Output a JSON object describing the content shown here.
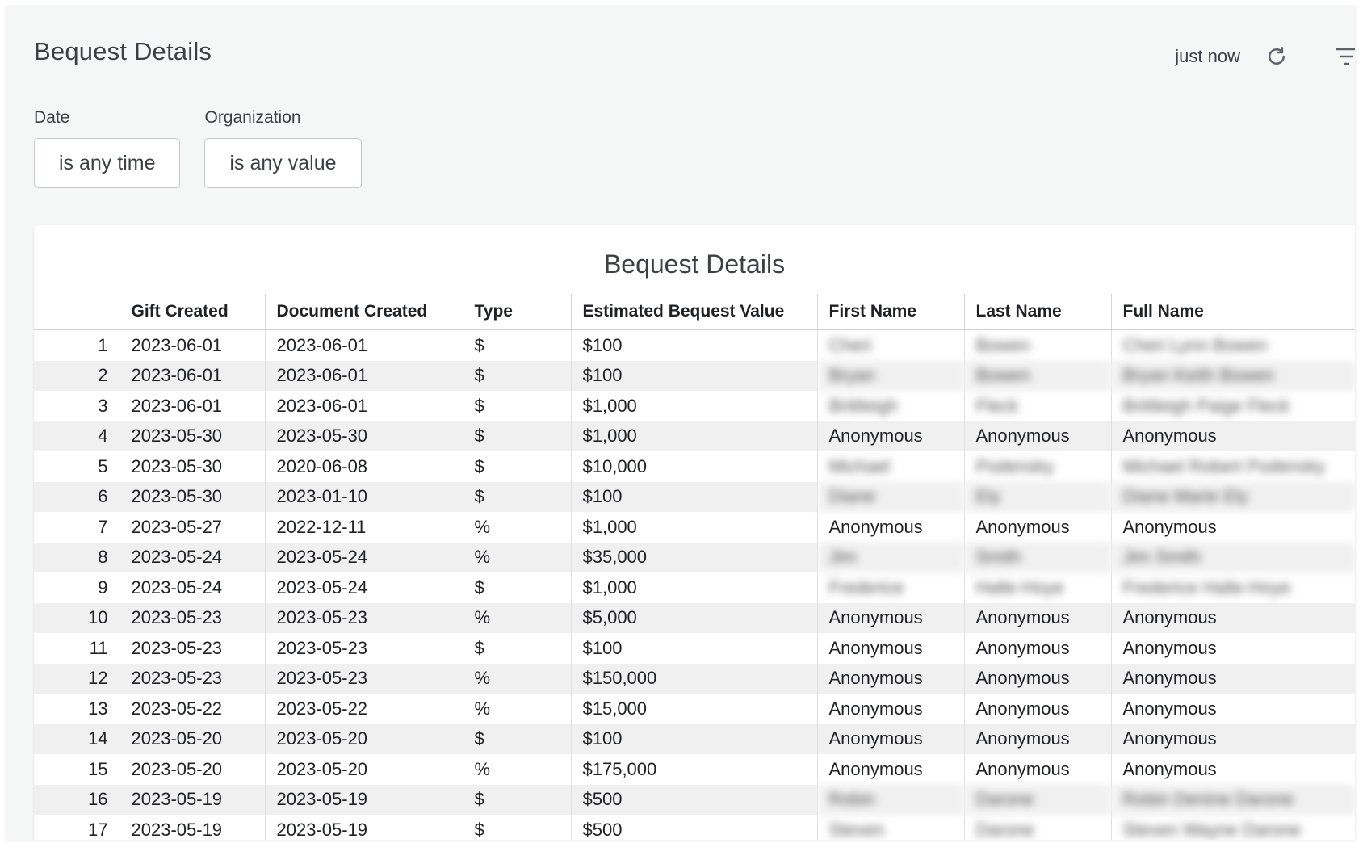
{
  "header": {
    "title": "Bequest Details",
    "updated": "just now",
    "refresh_icon": "refresh-icon",
    "filter_icon": "filter-icon"
  },
  "filters": [
    {
      "label": "Date",
      "value": "is any time"
    },
    {
      "label": "Organization",
      "value": "is any value"
    }
  ],
  "tile": {
    "title": "Bequest Details",
    "columns": [
      "",
      "Gift Created",
      "Document Created",
      "Type",
      "Estimated Bequest Value",
      "First Name",
      "Last Name",
      "Full Name"
    ],
    "rows": [
      {
        "n": "1",
        "gift": "2023-06-01",
        "doc": "2023-06-01",
        "type": "$",
        "value": "$100",
        "first": "Cheri",
        "last": "Bowen",
        "full": "Cheri Lynn Bowen",
        "blurred": true
      },
      {
        "n": "2",
        "gift": "2023-06-01",
        "doc": "2023-06-01",
        "type": "$",
        "value": "$100",
        "first": "Bryan",
        "last": "Bowen",
        "full": "Bryan Keith Bowen",
        "blurred": true
      },
      {
        "n": "3",
        "gift": "2023-06-01",
        "doc": "2023-06-01",
        "type": "$",
        "value": "$1,000",
        "first": "Brittleigh",
        "last": "Fleck",
        "full": "Brittleigh Paige Fleck",
        "blurred": true
      },
      {
        "n": "4",
        "gift": "2023-05-30",
        "doc": "2023-05-30",
        "type": "$",
        "value": "$1,000",
        "first": "Anonymous",
        "last": "Anonymous",
        "full": "Anonymous",
        "blurred": false
      },
      {
        "n": "5",
        "gift": "2023-05-30",
        "doc": "2020-06-08",
        "type": "$",
        "value": "$10,000",
        "first": "Michael",
        "last": "Podensky",
        "full": "Michael Robert Podensky",
        "blurred": true
      },
      {
        "n": "6",
        "gift": "2023-05-30",
        "doc": "2023-01-10",
        "type": "$",
        "value": "$100",
        "first": "Diane",
        "last": "Ely",
        "full": "Diane Marie Ely",
        "blurred": true
      },
      {
        "n": "7",
        "gift": "2023-05-27",
        "doc": "2022-12-11",
        "type": "%",
        "value": "$1,000",
        "first": "Anonymous",
        "last": "Anonymous",
        "full": "Anonymous",
        "blurred": false
      },
      {
        "n": "8",
        "gift": "2023-05-24",
        "doc": "2023-05-24",
        "type": "%",
        "value": "$35,000",
        "first": "Jim",
        "last": "Smith",
        "full": "Jim Smith",
        "blurred": true
      },
      {
        "n": "9",
        "gift": "2023-05-24",
        "doc": "2023-05-24",
        "type": "$",
        "value": "$1,000",
        "first": "Frederice",
        "last": "Halle-Hoye",
        "full": "Frederice Halle-Hoye",
        "blurred": true
      },
      {
        "n": "10",
        "gift": "2023-05-23",
        "doc": "2023-05-23",
        "type": "%",
        "value": "$5,000",
        "first": "Anonymous",
        "last": "Anonymous",
        "full": "Anonymous",
        "blurred": false
      },
      {
        "n": "11",
        "gift": "2023-05-23",
        "doc": "2023-05-23",
        "type": "$",
        "value": "$100",
        "first": "Anonymous",
        "last": "Anonymous",
        "full": "Anonymous",
        "blurred": false
      },
      {
        "n": "12",
        "gift": "2023-05-23",
        "doc": "2023-05-23",
        "type": "%",
        "value": "$150,000",
        "first": "Anonymous",
        "last": "Anonymous",
        "full": "Anonymous",
        "blurred": false
      },
      {
        "n": "13",
        "gift": "2023-05-22",
        "doc": "2023-05-22",
        "type": "%",
        "value": "$15,000",
        "first": "Anonymous",
        "last": "Anonymous",
        "full": "Anonymous",
        "blurred": false
      },
      {
        "n": "14",
        "gift": "2023-05-20",
        "doc": "2023-05-20",
        "type": "$",
        "value": "$100",
        "first": "Anonymous",
        "last": "Anonymous",
        "full": "Anonymous",
        "blurred": false
      },
      {
        "n": "15",
        "gift": "2023-05-20",
        "doc": "2023-05-20",
        "type": "%",
        "value": "$175,000",
        "first": "Anonymous",
        "last": "Anonymous",
        "full": "Anonymous",
        "blurred": false
      },
      {
        "n": "16",
        "gift": "2023-05-19",
        "doc": "2023-05-19",
        "type": "$",
        "value": "$500",
        "first": "Robin",
        "last": "Darone",
        "full": "Robin Denine Darone",
        "blurred": true
      },
      {
        "n": "17",
        "gift": "2023-05-19",
        "doc": "2023-05-19",
        "type": "$",
        "value": "$500",
        "first": "Steven",
        "last": "Darone",
        "full": "Steven Wayne Darone",
        "blurred": true
      }
    ]
  }
}
